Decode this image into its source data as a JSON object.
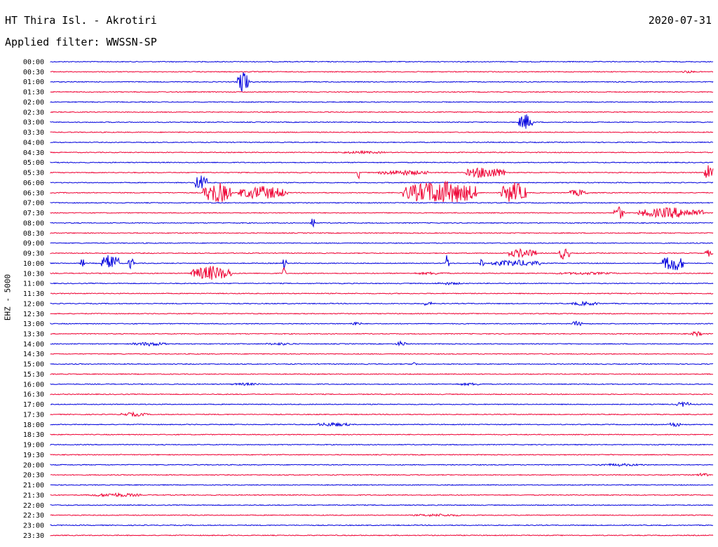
{
  "header": {
    "station": "HT Thira Isl. - Akrotiri",
    "date": "2020-07-31",
    "filter_label": "Applied filter: WWSSN-SP"
  },
  "chart_data": {
    "type": "line",
    "ylabel": "EHZ - 5000",
    "colors": {
      "even": "#0000dd",
      "odd": "#ee0033"
    },
    "rows": [
      "00:00",
      "00:30",
      "01:00",
      "01:30",
      "02:00",
      "02:30",
      "03:00",
      "03:30",
      "04:00",
      "04:30",
      "05:00",
      "05:30",
      "06:00",
      "06:30",
      "07:00",
      "07:30",
      "08:00",
      "08:30",
      "09:00",
      "09:30",
      "10:00",
      "10:30",
      "11:00",
      "11:30",
      "12:00",
      "12:30",
      "13:00",
      "13:30",
      "14:00",
      "14:30",
      "15:00",
      "15:30",
      "16:00",
      "16:30",
      "17:00",
      "17:30",
      "18:00",
      "18:30",
      "19:00",
      "19:30",
      "20:00",
      "20:30",
      "21:00",
      "21:30",
      "22:00",
      "22:30",
      "23:00",
      "23:30"
    ]
  }
}
